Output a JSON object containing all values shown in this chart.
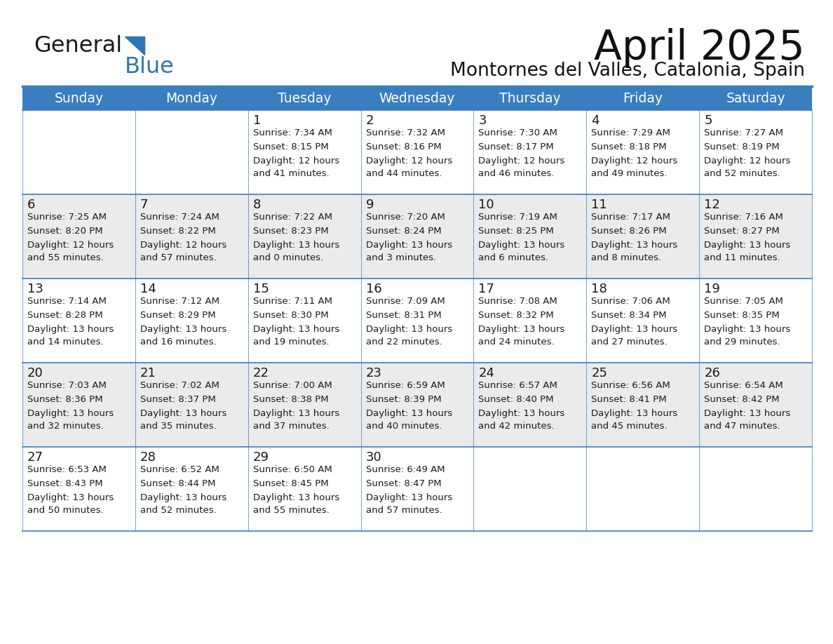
{
  "title": "April 2025",
  "subtitle": "Montornes del Valles, Catalonia, Spain",
  "header_bg": "#3a7ebf",
  "header_text": "#ffffff",
  "row_bg_light": "#f0f0f0",
  "row_bg_white": "#ffffff",
  "border_color": "#3a7ebf",
  "text_color": "#1a1a1a",
  "days_of_week": [
    "Sunday",
    "Monday",
    "Tuesday",
    "Wednesday",
    "Thursday",
    "Friday",
    "Saturday"
  ],
  "calendar": [
    [
      {
        "day": "",
        "sunrise": "",
        "sunset": "",
        "daylight": ""
      },
      {
        "day": "",
        "sunrise": "",
        "sunset": "",
        "daylight": ""
      },
      {
        "day": "1",
        "sunrise": "Sunrise: 7:34 AM",
        "sunset": "Sunset: 8:15 PM",
        "daylight": "Daylight: 12 hours\nand 41 minutes."
      },
      {
        "day": "2",
        "sunrise": "Sunrise: 7:32 AM",
        "sunset": "Sunset: 8:16 PM",
        "daylight": "Daylight: 12 hours\nand 44 minutes."
      },
      {
        "day": "3",
        "sunrise": "Sunrise: 7:30 AM",
        "sunset": "Sunset: 8:17 PM",
        "daylight": "Daylight: 12 hours\nand 46 minutes."
      },
      {
        "day": "4",
        "sunrise": "Sunrise: 7:29 AM",
        "sunset": "Sunset: 8:18 PM",
        "daylight": "Daylight: 12 hours\nand 49 minutes."
      },
      {
        "day": "5",
        "sunrise": "Sunrise: 7:27 AM",
        "sunset": "Sunset: 8:19 PM",
        "daylight": "Daylight: 12 hours\nand 52 minutes."
      }
    ],
    [
      {
        "day": "6",
        "sunrise": "Sunrise: 7:25 AM",
        "sunset": "Sunset: 8:20 PM",
        "daylight": "Daylight: 12 hours\nand 55 minutes."
      },
      {
        "day": "7",
        "sunrise": "Sunrise: 7:24 AM",
        "sunset": "Sunset: 8:22 PM",
        "daylight": "Daylight: 12 hours\nand 57 minutes."
      },
      {
        "day": "8",
        "sunrise": "Sunrise: 7:22 AM",
        "sunset": "Sunset: 8:23 PM",
        "daylight": "Daylight: 13 hours\nand 0 minutes."
      },
      {
        "day": "9",
        "sunrise": "Sunrise: 7:20 AM",
        "sunset": "Sunset: 8:24 PM",
        "daylight": "Daylight: 13 hours\nand 3 minutes."
      },
      {
        "day": "10",
        "sunrise": "Sunrise: 7:19 AM",
        "sunset": "Sunset: 8:25 PM",
        "daylight": "Daylight: 13 hours\nand 6 minutes."
      },
      {
        "day": "11",
        "sunrise": "Sunrise: 7:17 AM",
        "sunset": "Sunset: 8:26 PM",
        "daylight": "Daylight: 13 hours\nand 8 minutes."
      },
      {
        "day": "12",
        "sunrise": "Sunrise: 7:16 AM",
        "sunset": "Sunset: 8:27 PM",
        "daylight": "Daylight: 13 hours\nand 11 minutes."
      }
    ],
    [
      {
        "day": "13",
        "sunrise": "Sunrise: 7:14 AM",
        "sunset": "Sunset: 8:28 PM",
        "daylight": "Daylight: 13 hours\nand 14 minutes."
      },
      {
        "day": "14",
        "sunrise": "Sunrise: 7:12 AM",
        "sunset": "Sunset: 8:29 PM",
        "daylight": "Daylight: 13 hours\nand 16 minutes."
      },
      {
        "day": "15",
        "sunrise": "Sunrise: 7:11 AM",
        "sunset": "Sunset: 8:30 PM",
        "daylight": "Daylight: 13 hours\nand 19 minutes."
      },
      {
        "day": "16",
        "sunrise": "Sunrise: 7:09 AM",
        "sunset": "Sunset: 8:31 PM",
        "daylight": "Daylight: 13 hours\nand 22 minutes."
      },
      {
        "day": "17",
        "sunrise": "Sunrise: 7:08 AM",
        "sunset": "Sunset: 8:32 PM",
        "daylight": "Daylight: 13 hours\nand 24 minutes."
      },
      {
        "day": "18",
        "sunrise": "Sunrise: 7:06 AM",
        "sunset": "Sunset: 8:34 PM",
        "daylight": "Daylight: 13 hours\nand 27 minutes."
      },
      {
        "day": "19",
        "sunrise": "Sunrise: 7:05 AM",
        "sunset": "Sunset: 8:35 PM",
        "daylight": "Daylight: 13 hours\nand 29 minutes."
      }
    ],
    [
      {
        "day": "20",
        "sunrise": "Sunrise: 7:03 AM",
        "sunset": "Sunset: 8:36 PM",
        "daylight": "Daylight: 13 hours\nand 32 minutes."
      },
      {
        "day": "21",
        "sunrise": "Sunrise: 7:02 AM",
        "sunset": "Sunset: 8:37 PM",
        "daylight": "Daylight: 13 hours\nand 35 minutes."
      },
      {
        "day": "22",
        "sunrise": "Sunrise: 7:00 AM",
        "sunset": "Sunset: 8:38 PM",
        "daylight": "Daylight: 13 hours\nand 37 minutes."
      },
      {
        "day": "23",
        "sunrise": "Sunrise: 6:59 AM",
        "sunset": "Sunset: 8:39 PM",
        "daylight": "Daylight: 13 hours\nand 40 minutes."
      },
      {
        "day": "24",
        "sunrise": "Sunrise: 6:57 AM",
        "sunset": "Sunset: 8:40 PM",
        "daylight": "Daylight: 13 hours\nand 42 minutes."
      },
      {
        "day": "25",
        "sunrise": "Sunrise: 6:56 AM",
        "sunset": "Sunset: 8:41 PM",
        "daylight": "Daylight: 13 hours\nand 45 minutes."
      },
      {
        "day": "26",
        "sunrise": "Sunrise: 6:54 AM",
        "sunset": "Sunset: 8:42 PM",
        "daylight": "Daylight: 13 hours\nand 47 minutes."
      }
    ],
    [
      {
        "day": "27",
        "sunrise": "Sunrise: 6:53 AM",
        "sunset": "Sunset: 8:43 PM",
        "daylight": "Daylight: 13 hours\nand 50 minutes."
      },
      {
        "day": "28",
        "sunrise": "Sunrise: 6:52 AM",
        "sunset": "Sunset: 8:44 PM",
        "daylight": "Daylight: 13 hours\nand 52 minutes."
      },
      {
        "day": "29",
        "sunrise": "Sunrise: 6:50 AM",
        "sunset": "Sunset: 8:45 PM",
        "daylight": "Daylight: 13 hours\nand 55 minutes."
      },
      {
        "day": "30",
        "sunrise": "Sunrise: 6:49 AM",
        "sunset": "Sunset: 8:47 PM",
        "daylight": "Daylight: 13 hours\nand 57 minutes."
      },
      {
        "day": "",
        "sunrise": "",
        "sunset": "",
        "daylight": ""
      },
      {
        "day": "",
        "sunrise": "",
        "sunset": "",
        "daylight": ""
      },
      {
        "day": "",
        "sunrise": "",
        "sunset": "",
        "daylight": ""
      }
    ]
  ],
  "row_backgrounds": [
    "#ffffff",
    "#ebebeb",
    "#ffffff",
    "#ebebeb",
    "#ffffff"
  ]
}
